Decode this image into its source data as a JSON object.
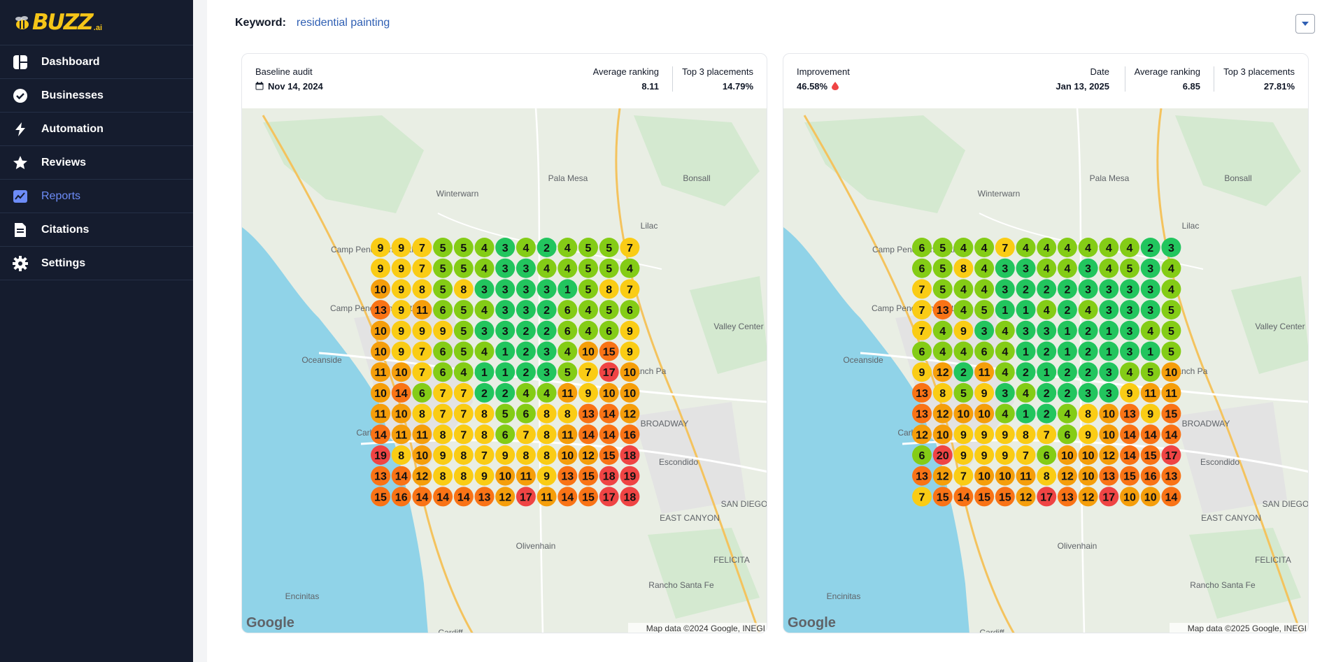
{
  "app": {
    "logo_text": "BUZZ",
    "logo_suffix": ".ai"
  },
  "sidebar": {
    "items": [
      {
        "label": "Dashboard",
        "icon": "dashboard-icon",
        "active": false
      },
      {
        "label": "Businesses",
        "icon": "badge-check-icon",
        "active": false
      },
      {
        "label": "Automation",
        "icon": "lightning-icon",
        "active": false
      },
      {
        "label": "Reviews",
        "icon": "star-icon",
        "active": false
      },
      {
        "label": "Reports",
        "icon": "chart-icon",
        "active": true
      },
      {
        "label": "Citations",
        "icon": "document-icon",
        "active": false
      },
      {
        "label": "Settings",
        "icon": "gear-icon",
        "active": false
      }
    ]
  },
  "keyword": {
    "label": "Keyword:",
    "value": "residential painting"
  },
  "colors": {
    "sidebar_bg": "#151c2e",
    "active_nav": "#6d8cf7",
    "keyword_link": "#2f5fb3",
    "rank_1_3": "#22c55e",
    "rank_4_6": "#84cc16",
    "rank_7_9": "#facc15",
    "rank_10_12": "#f59e0b",
    "rank_13_16": "#f97316",
    "rank_17_plus": "#ef4444"
  },
  "baseline": {
    "title_label": "Baseline audit",
    "date": "Nov 14, 2024",
    "avg_label": "Average ranking",
    "avg_value": "8.11",
    "top3_label": "Top 3 placements",
    "top3_value": "14.79%",
    "map_attribution": "Map data ©2024 Google, INEGI",
    "grid": [
      [
        9,
        9,
        7,
        5,
        5,
        4,
        3,
        4,
        2,
        4,
        5,
        5,
        7
      ],
      [
        9,
        9,
        7,
        5,
        5,
        4,
        3,
        3,
        4,
        4,
        5,
        5,
        4
      ],
      [
        10,
        9,
        8,
        5,
        8,
        3,
        3,
        3,
        3,
        1,
        5,
        8,
        7
      ],
      [
        13,
        9,
        11,
        6,
        5,
        4,
        3,
        3,
        2,
        6,
        4,
        5,
        6
      ],
      [
        10,
        9,
        9,
        9,
        5,
        3,
        3,
        2,
        2,
        6,
        4,
        6,
        9
      ],
      [
        10,
        9,
        7,
        6,
        5,
        4,
        1,
        2,
        3,
        4,
        10,
        15,
        9
      ],
      [
        11,
        10,
        7,
        6,
        4,
        1,
        1,
        2,
        3,
        5,
        7,
        17,
        10
      ],
      [
        10,
        14,
        6,
        7,
        7,
        2,
        2,
        4,
        4,
        11,
        9,
        10,
        10
      ],
      [
        11,
        10,
        8,
        7,
        7,
        8,
        5,
        6,
        8,
        8,
        13,
        14,
        12
      ],
      [
        14,
        11,
        11,
        8,
        7,
        8,
        6,
        7,
        8,
        11,
        14,
        14,
        16
      ],
      [
        19,
        8,
        10,
        9,
        8,
        7,
        9,
        8,
        8,
        10,
        12,
        15,
        18
      ],
      [
        13,
        14,
        12,
        8,
        8,
        9,
        10,
        11,
        9,
        13,
        15,
        18,
        19
      ],
      [
        15,
        16,
        14,
        14,
        14,
        13,
        12,
        17,
        11,
        14,
        15,
        17,
        18
      ]
    ]
  },
  "current": {
    "improvement_label": "Improvement",
    "improvement_value": "46.58%",
    "date_label": "Date",
    "date_value": "Jan 13, 2025",
    "avg_label": "Average ranking",
    "avg_value": "6.85",
    "top3_label": "Top 3 placements",
    "top3_value": "27.81%",
    "map_attribution": "Map data ©2025 Google, INEGI",
    "grid": [
      [
        6,
        5,
        4,
        4,
        7,
        4,
        4,
        4,
        4,
        4,
        4,
        2,
        3
      ],
      [
        6,
        5,
        8,
        4,
        3,
        3,
        4,
        4,
        3,
        4,
        5,
        3,
        4
      ],
      [
        7,
        5,
        4,
        4,
        3,
        2,
        2,
        2,
        3,
        3,
        3,
        3,
        4
      ],
      [
        7,
        13,
        4,
        5,
        1,
        1,
        4,
        2,
        4,
        3,
        3,
        3,
        5
      ],
      [
        7,
        4,
        9,
        3,
        4,
        3,
        3,
        1,
        2,
        1,
        3,
        4,
        5
      ],
      [
        6,
        4,
        4,
        6,
        4,
        1,
        2,
        1,
        2,
        1,
        3,
        1,
        5
      ],
      [
        9,
        12,
        2,
        11,
        4,
        2,
        1,
        2,
        2,
        3,
        4,
        5,
        10
      ],
      [
        13,
        8,
        5,
        9,
        3,
        4,
        2,
        2,
        3,
        3,
        9,
        11,
        11
      ],
      [
        13,
        12,
        10,
        10,
        4,
        1,
        2,
        4,
        8,
        10,
        13,
        9,
        15
      ],
      [
        12,
        10,
        9,
        9,
        9,
        8,
        7,
        6,
        9,
        10,
        14,
        14,
        14
      ],
      [
        6,
        20,
        9,
        9,
        9,
        7,
        6,
        10,
        10,
        12,
        14,
        15,
        17
      ],
      [
        13,
        12,
        7,
        10,
        10,
        11,
        8,
        12,
        10,
        13,
        15,
        16,
        13
      ],
      [
        7,
        15,
        14,
        15,
        15,
        12,
        17,
        13,
        12,
        17,
        10,
        10,
        14
      ]
    ]
  },
  "map_labels": [
    "Winterwarn",
    "Pala Mesa",
    "Camp Pendleton North",
    "Lilac",
    "Bonsall",
    "Camp Pendleton South",
    "Valley Center",
    "Oceanside",
    "Ranch Pa",
    "Carlsba",
    "BROADWAY",
    "Escondido",
    "Olivenhain",
    "Encinitas",
    "Rancho Santa Fe",
    "Cardiff",
    "EAST CANYON",
    "FELICITA",
    "SAN DIEGO"
  ],
  "google_logo": "Google"
}
